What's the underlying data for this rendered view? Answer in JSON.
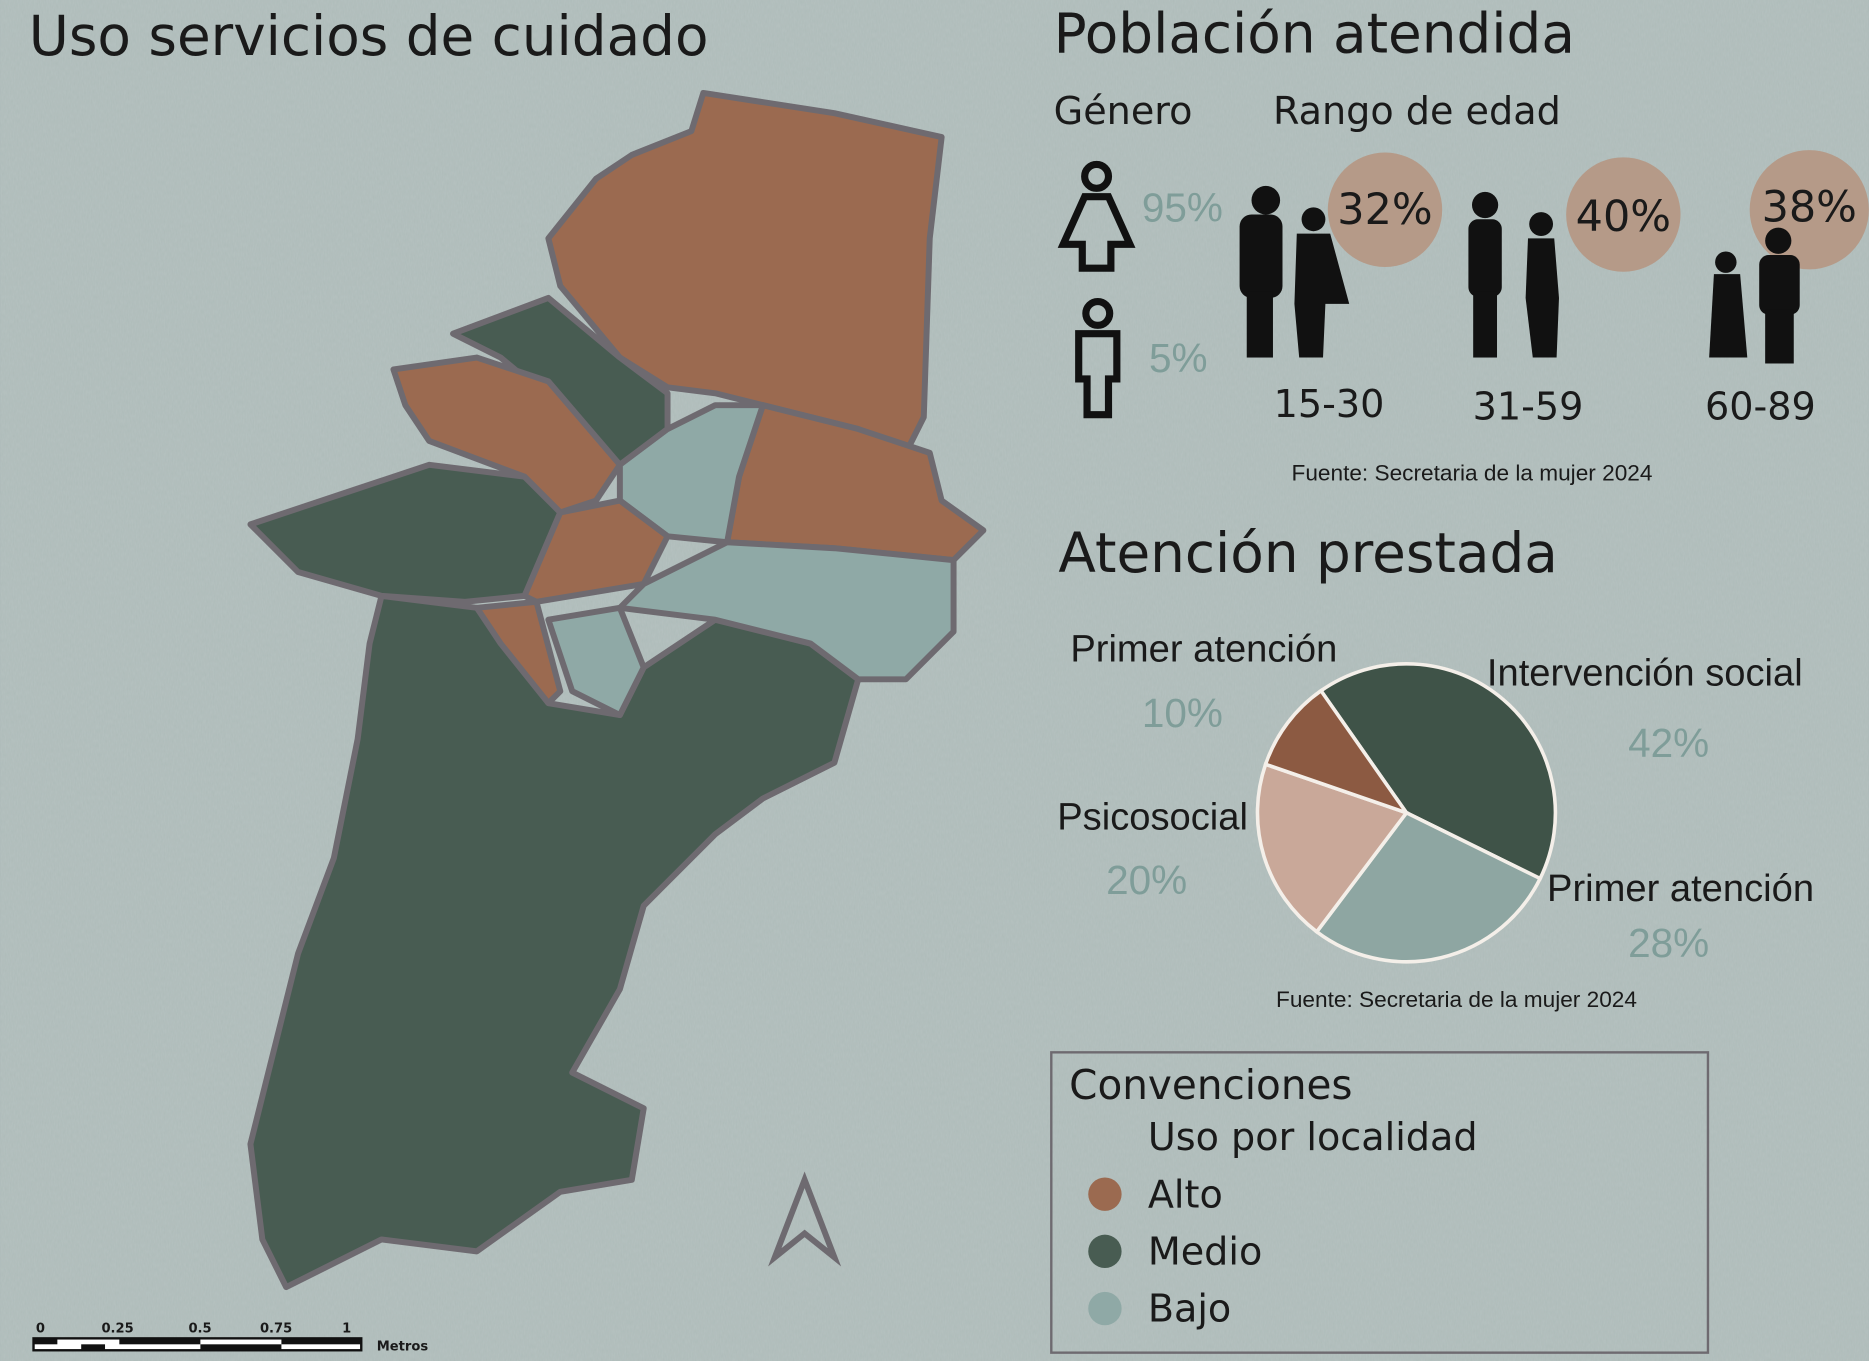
{
  "map": {
    "title": "Uso servicios de cuidado",
    "scale_labels": [
      "0",
      "0.25",
      "0.5",
      "0.75",
      "1",
      "Metros"
    ],
    "legend": {
      "title": "Convenciones",
      "subtitle": "Uso por localidad",
      "items": [
        {
          "label": "Alto",
          "color": "#9b6a50"
        },
        {
          "label": "Medio",
          "color": "#485c52"
        },
        {
          "label": "Bajo",
          "color": "#8fa9a6"
        }
      ]
    }
  },
  "population": {
    "title": "Población atendida",
    "gender_label": "Género",
    "age_label": "Rango de edad",
    "gender": [
      "95%",
      "5%"
    ],
    "age_groups": [
      {
        "range": "15-30",
        "share": "32%"
      },
      {
        "range": "31-59",
        "share": "40%"
      },
      {
        "range": "60-89",
        "share": "38%"
      }
    ],
    "source": "Fuente: Secretaria de la mujer 2024"
  },
  "chart_data": {
    "type": "pie",
    "title": "Atención prestada",
    "categories": [
      "Intervención social",
      "Primer atención",
      "Psicosocial",
      "Primer atención"
    ],
    "values": [
      42,
      28,
      20,
      10
    ],
    "value_labels": [
      "42%",
      "28%",
      "20%",
      "10%"
    ],
    "colors": [
      "#3f5348",
      "#8ea6a2",
      "#c9a899",
      "#8c5a42"
    ],
    "source": "Fuente: Secretaria de la mujer 2024"
  }
}
